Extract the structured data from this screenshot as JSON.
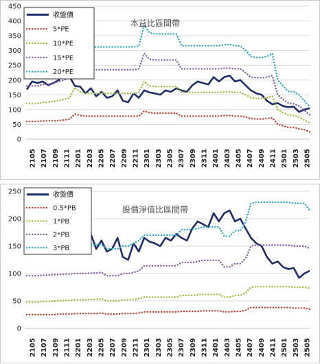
{
  "chart_data": [
    {
      "type": "line",
      "title": "本益比區間帶",
      "xlabel": "",
      "ylabel": "",
      "ylim": [
        0,
        450
      ],
      "yticks": [
        0,
        50,
        100,
        150,
        200,
        250,
        300,
        350,
        400,
        450
      ],
      "grid": true,
      "legend": "top-left",
      "xticks": [
        "2105",
        "2107",
        "2109",
        "2111",
        "2201",
        "2203",
        "2205",
        "2207",
        "2209",
        "2211",
        "2301",
        "2303",
        "2305",
        "2307",
        "2309",
        "2311",
        "2401",
        "2403",
        "2405",
        "2407",
        "2409",
        "2411",
        "2501",
        "2503",
        "2505"
      ],
      "series": [
        {
          "name": "收盤價",
          "color": "#1f2d6b",
          "style": "solid",
          "values": [
            168,
            195,
            190,
            195,
            183,
            190,
            200,
            235,
            212,
            180,
            178,
            155,
            172,
            145,
            160,
            140,
            145,
            165,
            130,
            125,
            155,
            140,
            165,
            158,
            155,
            150,
            165,
            160,
            172,
            165,
            160,
            182,
            195,
            190,
            185,
            210,
            195,
            210,
            215,
            195,
            200,
            182,
            165,
            155,
            150,
            130,
            118,
            122,
            112,
            108,
            110,
            92,
            100,
            105
          ]
        },
        {
          "name": "5*PE",
          "color": "#c0392b",
          "style": "dotted",
          "values": [
            60,
            60,
            60,
            62,
            62,
            62,
            63,
            65,
            68,
            85,
            80,
            78,
            78,
            78,
            78,
            78,
            78,
            78,
            78,
            78,
            78,
            78,
            95,
            90,
            88,
            88,
            88,
            88,
            88,
            78,
            78,
            78,
            78,
            78,
            78,
            78,
            78,
            80,
            80,
            78,
            78,
            75,
            70,
            68,
            68,
            70,
            72,
            50,
            45,
            40,
            40,
            35,
            32,
            25
          ]
        },
        {
          "name": "10*PE",
          "color": "#9bbb3b",
          "style": "dotted",
          "values": [
            120,
            120,
            120,
            125,
            125,
            128,
            130,
            135,
            140,
            175,
            160,
            155,
            155,
            155,
            155,
            155,
            155,
            155,
            155,
            155,
            155,
            158,
            195,
            180,
            178,
            178,
            178,
            178,
            178,
            158,
            158,
            158,
            158,
            158,
            158,
            158,
            158,
            160,
            160,
            158,
            158,
            150,
            140,
            138,
            138,
            140,
            145,
            100,
            90,
            82,
            80,
            75,
            65,
            55
          ]
        },
        {
          "name": "15*PE",
          "color": "#7e5aa8",
          "style": "dotted",
          "values": [
            180,
            180,
            180,
            185,
            185,
            190,
            195,
            200,
            210,
            260,
            240,
            235,
            235,
            235,
            235,
            235,
            235,
            235,
            235,
            235,
            235,
            238,
            290,
            270,
            268,
            268,
            268,
            268,
            268,
            238,
            238,
            238,
            238,
            238,
            238,
            238,
            238,
            240,
            240,
            238,
            238,
            225,
            210,
            208,
            208,
            210,
            215,
            150,
            135,
            122,
            120,
            112,
            98,
            82
          ]
        },
        {
          "name": "20*PE",
          "color": "#2aa8c4",
          "style": "dotted",
          "values": [
            240,
            240,
            240,
            245,
            245,
            252,
            258,
            268,
            280,
            345,
            320,
            312,
            312,
            312,
            312,
            312,
            312,
            312,
            312,
            312,
            312,
            315,
            385,
            360,
            356,
            356,
            356,
            356,
            356,
            316,
            316,
            316,
            316,
            316,
            316,
            316,
            316,
            320,
            320,
            316,
            316,
            300,
            280,
            276,
            276,
            280,
            290,
            200,
            180,
            162,
            160,
            150,
            130,
            110
          ]
        }
      ]
    },
    {
      "type": "line",
      "title": "股價淨值比區間帶",
      "xlabel": "",
      "ylabel": "",
      "ylim": [
        0,
        250
      ],
      "yticks": [
        0,
        50,
        100,
        150,
        200,
        250
      ],
      "grid": true,
      "legend": "top-left",
      "xticks": [
        "2105",
        "2107",
        "2109",
        "2111",
        "2201",
        "2203",
        "2205",
        "2207",
        "2209",
        "2211",
        "2301",
        "2303",
        "2305",
        "2307",
        "2309",
        "2311",
        "2401",
        "2403",
        "2405",
        "2407",
        "2409",
        "2411",
        "2501",
        "2503",
        "2505"
      ],
      "series": [
        {
          "name": "收盤價",
          "color": "#1f2d6b",
          "style": "solid",
          "values": [
            168,
            195,
            190,
            195,
            183,
            190,
            200,
            235,
            212,
            180,
            178,
            155,
            172,
            145,
            160,
            140,
            145,
            165,
            130,
            125,
            155,
            140,
            165,
            158,
            155,
            150,
            165,
            160,
            172,
            165,
            160,
            182,
            195,
            190,
            185,
            210,
            195,
            210,
            215,
            195,
            200,
            182,
            165,
            155,
            150,
            130,
            118,
            122,
            112,
            108,
            110,
            92,
            100,
            105
          ]
        },
        {
          "name": "0.5*PB",
          "color": "#c0392b",
          "style": "dotted",
          "values": [
            25,
            25,
            25,
            25,
            25,
            25,
            26,
            26,
            26,
            27,
            27,
            27,
            27,
            27,
            28,
            26,
            26,
            26,
            27,
            27,
            27,
            28,
            30,
            30,
            30,
            30,
            30,
            30,
            30,
            31,
            31,
            31,
            31,
            32,
            32,
            32,
            32,
            30,
            30,
            31,
            31,
            33,
            38,
            38,
            38,
            38,
            38,
            38,
            38,
            38,
            37,
            37,
            37,
            35
          ]
        },
        {
          "name": "1*PB",
          "color": "#9bbb3b",
          "style": "dotted",
          "values": [
            48,
            48,
            48,
            49,
            49,
            50,
            50,
            51,
            51,
            52,
            52,
            52,
            53,
            53,
            54,
            50,
            50,
            50,
            52,
            52,
            53,
            54,
            57,
            57,
            57,
            57,
            57,
            57,
            57,
            60,
            60,
            60,
            61,
            62,
            62,
            62,
            62,
            57,
            57,
            60,
            60,
            65,
            75,
            76,
            76,
            76,
            76,
            76,
            76,
            76,
            75,
            75,
            75,
            73
          ]
        },
        {
          "name": "2*PB",
          "color": "#7e5aa8",
          "style": "dotted",
          "values": [
            96,
            96,
            96,
            97,
            97,
            98,
            98,
            99,
            99,
            100,
            100,
            100,
            101,
            101,
            102,
            96,
            96,
            96,
            100,
            100,
            102,
            105,
            114,
            114,
            114,
            114,
            114,
            114,
            114,
            120,
            120,
            120,
            122,
            124,
            124,
            124,
            124,
            112,
            112,
            118,
            118,
            128,
            150,
            152,
            152,
            152,
            152,
            152,
            152,
            152,
            150,
            150,
            150,
            146
          ]
        },
        {
          "name": "3*PB",
          "color": "#2aa8c4",
          "style": "dotted",
          "values": [
            148,
            148,
            148,
            149,
            149,
            150,
            150,
            150,
            150,
            152,
            152,
            152,
            152,
            152,
            153,
            145,
            145,
            145,
            150,
            150,
            155,
            160,
            170,
            170,
            170,
            170,
            170,
            170,
            170,
            180,
            180,
            180,
            182,
            185,
            185,
            185,
            185,
            168,
            168,
            178,
            178,
            195,
            228,
            230,
            230,
            230,
            230,
            230,
            230,
            230,
            228,
            228,
            228,
            215
          ]
        }
      ]
    }
  ]
}
